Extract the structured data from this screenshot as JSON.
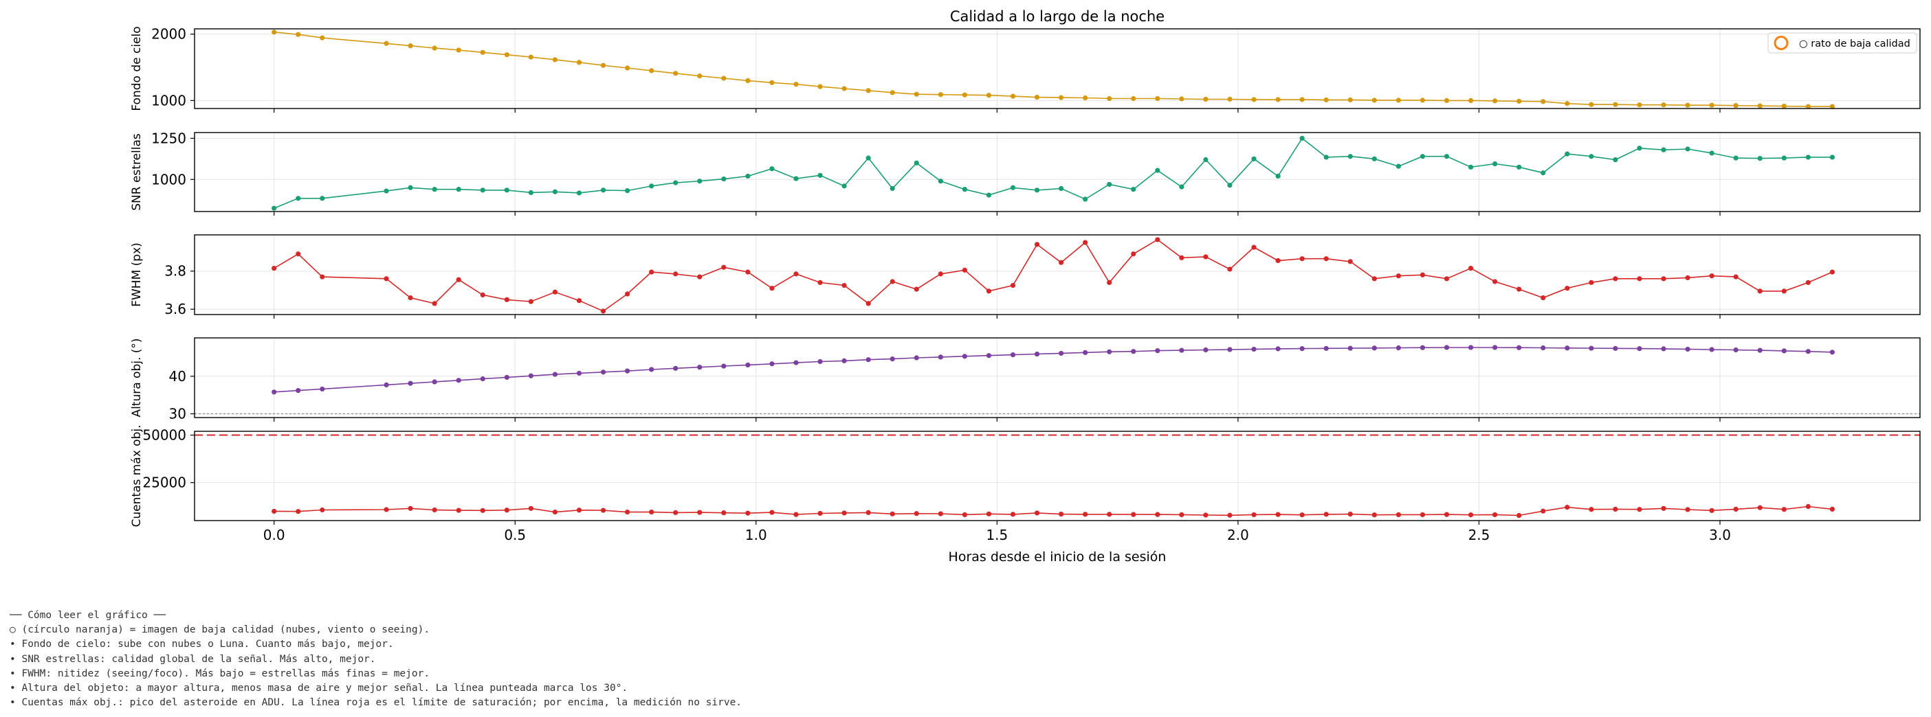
{
  "figure": {
    "title": "Calidad a lo largo de la noche",
    "xlabel": "Horas desde el inicio de la sesión",
    "legend_label": "○ rato de baja calidad",
    "legend_marker_color": "#ff7f0e"
  },
  "notes": [
    "── Cómo leer el gráfico ──",
    "○ (círculo naranja) = imagen de baja calidad (nubes, viento o seeing).",
    "• Fondo de cielo: sube con nubes o Luna. Cuanto más bajo, mejor.",
    "• SNR estrellas: calidad global de la señal. Más alto, mejor.",
    "• FWHM: nitidez (seeing/foco). Más bajo = estrellas más finas = mejor.",
    "• Altura del objeto: a mayor altura, menos masa de aire y mejor señal. La línea punteada marca los 30°.",
    "• Cuentas máx obj.: pico del asteroide en ADU. La línea roja es el límite de saturación; por encima, la medición no sirve."
  ],
  "chart_data": [
    {
      "type": "line",
      "panel": 1,
      "ylabel": "Fondo de cielo",
      "xlim": [
        -0.165,
        3.415
      ],
      "ylim": [
        880,
        2080
      ],
      "yticks": [
        1000,
        2000
      ],
      "xticks": [
        0.0,
        0.5,
        1.0,
        1.5,
        2.0,
        2.5,
        3.0
      ],
      "grid": true,
      "legend": "top-right",
      "color": "#d4990f",
      "x": [
        0.0,
        0.05,
        0.1,
        0.233,
        0.283,
        0.333,
        0.383,
        0.433,
        0.483,
        0.533,
        0.583,
        0.633,
        0.683,
        0.733,
        0.783,
        0.833,
        0.883,
        0.933,
        0.983,
        1.033,
        1.083,
        1.133,
        1.183,
        1.233,
        1.283,
        1.333,
        1.383,
        1.433,
        1.483,
        1.533,
        1.583,
        1.633,
        1.683,
        1.733,
        1.783,
        1.833,
        1.883,
        1.933,
        1.983,
        2.033,
        2.083,
        2.133,
        2.183,
        2.233,
        2.283,
        2.333,
        2.383,
        2.433,
        2.483,
        2.533,
        2.583,
        2.633,
        2.683,
        2.733,
        2.783,
        2.833,
        2.883,
        2.933,
        2.983,
        3.033,
        3.083,
        3.133,
        3.183,
        3.233
      ],
      "y": [
        2030,
        1995,
        1945,
        1860,
        1825,
        1790,
        1760,
        1725,
        1690,
        1655,
        1615,
        1575,
        1530,
        1490,
        1450,
        1410,
        1370,
        1335,
        1300,
        1270,
        1245,
        1210,
        1180,
        1150,
        1120,
        1095,
        1090,
        1085,
        1080,
        1065,
        1050,
        1045,
        1040,
        1030,
        1030,
        1030,
        1025,
        1020,
        1020,
        1015,
        1015,
        1015,
        1010,
        1010,
        1005,
        1005,
        1005,
        1000,
        1000,
        995,
        990,
        985,
        955,
        940,
        940,
        935,
        935,
        930,
        930,
        925,
        920,
        915,
        910,
        910
      ]
    },
    {
      "type": "line",
      "panel": 2,
      "ylabel": "SNR estrellas",
      "xlim": [
        -0.165,
        3.415
      ],
      "ylim": [
        805,
        1285
      ],
      "yticks": [
        1000,
        1250
      ],
      "xticks": [
        0.0,
        0.5,
        1.0,
        1.5,
        2.0,
        2.5,
        3.0
      ],
      "grid": true,
      "color": "#1a9e74",
      "x": [
        0.0,
        0.05,
        0.1,
        0.233,
        0.283,
        0.333,
        0.383,
        0.433,
        0.483,
        0.533,
        0.583,
        0.633,
        0.683,
        0.733,
        0.783,
        0.833,
        0.883,
        0.933,
        0.983,
        1.033,
        1.083,
        1.133,
        1.183,
        1.233,
        1.283,
        1.333,
        1.383,
        1.433,
        1.483,
        1.533,
        1.583,
        1.633,
        1.683,
        1.733,
        1.783,
        1.833,
        1.883,
        1.933,
        1.983,
        2.033,
        2.083,
        2.133,
        2.183,
        2.233,
        2.283,
        2.333,
        2.383,
        2.433,
        2.483,
        2.533,
        2.583,
        2.633,
        2.683,
        2.733,
        2.783,
        2.833,
        2.883,
        2.933,
        2.983,
        3.033,
        3.083,
        3.133,
        3.183,
        3.233
      ],
      "y": [
        825,
        885,
        885,
        930,
        950,
        940,
        940,
        935,
        935,
        920,
        925,
        918,
        935,
        932,
        960,
        980,
        990,
        1003,
        1020,
        1065,
        1005,
        1025,
        960,
        1130,
        945,
        1100,
        990,
        940,
        905,
        950,
        935,
        945,
        880,
        970,
        940,
        1055,
        955,
        1120,
        965,
        1125,
        1020,
        1250,
        1135,
        1140,
        1125,
        1080,
        1140,
        1140,
        1075,
        1095,
        1075,
        1040,
        1155,
        1140,
        1120,
        1190,
        1180,
        1185,
        1160,
        1130,
        1128,
        1130,
        1135,
        1135
      ]
    },
    {
      "type": "line",
      "panel": 3,
      "ylabel": "FWHM (px)",
      "xlim": [
        -0.165,
        3.415
      ],
      "ylim": [
        3.572,
        3.99
      ],
      "yticks": [
        3.6,
        3.8
      ],
      "xticks": [
        0.0,
        0.5,
        1.0,
        1.5,
        2.0,
        2.5,
        3.0
      ],
      "grid": true,
      "color": "#d62728",
      "x": [
        0.0,
        0.05,
        0.1,
        0.233,
        0.283,
        0.333,
        0.383,
        0.433,
        0.483,
        0.533,
        0.583,
        0.633,
        0.683,
        0.733,
        0.783,
        0.833,
        0.883,
        0.933,
        0.983,
        1.033,
        1.083,
        1.133,
        1.183,
        1.233,
        1.283,
        1.333,
        1.383,
        1.433,
        1.483,
        1.533,
        1.583,
        1.633,
        1.683,
        1.733,
        1.783,
        1.833,
        1.883,
        1.933,
        1.983,
        2.033,
        2.083,
        2.133,
        2.183,
        2.233,
        2.283,
        2.333,
        2.383,
        2.433,
        2.483,
        2.533,
        2.583,
        2.633,
        2.683,
        2.733,
        2.783,
        2.833,
        2.883,
        2.933,
        2.983,
        3.033,
        3.083,
        3.133,
        3.183,
        3.233
      ],
      "y": [
        3.815,
        3.89,
        3.77,
        3.76,
        3.66,
        3.63,
        3.755,
        3.675,
        3.65,
        3.64,
        3.69,
        3.645,
        3.59,
        3.68,
        3.795,
        3.785,
        3.77,
        3.82,
        3.795,
        3.71,
        3.785,
        3.74,
        3.725,
        3.63,
        3.745,
        3.705,
        3.785,
        3.805,
        3.695,
        3.725,
        3.94,
        3.845,
        3.95,
        3.74,
        3.89,
        3.965,
        3.87,
        3.875,
        3.81,
        3.925,
        3.855,
        3.865,
        3.865,
        3.85,
        3.76,
        3.775,
        3.78,
        3.76,
        3.815,
        3.745,
        3.705,
        3.66,
        3.71,
        3.74,
        3.76,
        3.76,
        3.76,
        3.765,
        3.775,
        3.77,
        3.695,
        3.695,
        3.74,
        3.795
      ]
    },
    {
      "type": "line",
      "panel": 4,
      "ylabel": "Altura obj. (°)",
      "xlim": [
        -0.165,
        3.415
      ],
      "ylim": [
        29.0,
        50.2
      ],
      "yticks": [
        30,
        40
      ],
      "xticks": [
        0.0,
        0.5,
        1.0,
        1.5,
        2.0,
        2.5,
        3.0
      ],
      "grid": true,
      "color": "#7b3f9e",
      "reference_line": 30,
      "x": [
        0.0,
        0.05,
        0.1,
        0.233,
        0.283,
        0.333,
        0.383,
        0.433,
        0.483,
        0.533,
        0.583,
        0.633,
        0.683,
        0.733,
        0.783,
        0.833,
        0.883,
        0.933,
        0.983,
        1.033,
        1.083,
        1.133,
        1.183,
        1.233,
        1.283,
        1.333,
        1.383,
        1.433,
        1.483,
        1.533,
        1.583,
        1.633,
        1.683,
        1.733,
        1.783,
        1.833,
        1.883,
        1.933,
        1.983,
        2.033,
        2.083,
        2.133,
        2.183,
        2.233,
        2.283,
        2.333,
        2.383,
        2.433,
        2.483,
        2.533,
        2.583,
        2.633,
        2.683,
        2.733,
        2.783,
        2.833,
        2.883,
        2.933,
        2.983,
        3.033,
        3.083,
        3.133,
        3.183,
        3.233
      ],
      "y": [
        35.8,
        36.2,
        36.6,
        37.7,
        38.1,
        38.5,
        38.9,
        39.3,
        39.7,
        40.1,
        40.5,
        40.8,
        41.1,
        41.4,
        41.8,
        42.1,
        42.4,
        42.7,
        43.0,
        43.3,
        43.6,
        43.9,
        44.1,
        44.4,
        44.6,
        44.9,
        45.1,
        45.3,
        45.5,
        45.7,
        45.9,
        46.1,
        46.3,
        46.5,
        46.6,
        46.8,
        46.9,
        47.0,
        47.1,
        47.2,
        47.3,
        47.35,
        47.4,
        47.45,
        47.5,
        47.55,
        47.6,
        47.65,
        47.65,
        47.65,
        47.6,
        47.55,
        47.5,
        47.45,
        47.4,
        47.35,
        47.3,
        47.2,
        47.1,
        47.0,
        46.9,
        46.75,
        46.6,
        46.4
      ]
    },
    {
      "type": "line",
      "panel": 5,
      "ylabel": "Cuentas máx obj.",
      "xlim": [
        -0.165,
        3.415
      ],
      "ylim": [
        5000,
        52000
      ],
      "yticks": [
        25000,
        50000
      ],
      "xticks": [
        0.0,
        0.5,
        1.0,
        1.5,
        2.0,
        2.5,
        3.0
      ],
      "grid": true,
      "color": "#d62728",
      "reference_line": 50000,
      "x": [
        0.0,
        0.05,
        0.1,
        0.233,
        0.283,
        0.333,
        0.383,
        0.433,
        0.483,
        0.533,
        0.583,
        0.633,
        0.683,
        0.733,
        0.783,
        0.833,
        0.883,
        0.933,
        0.983,
        1.033,
        1.083,
        1.133,
        1.183,
        1.233,
        1.283,
        1.333,
        1.383,
        1.433,
        1.483,
        1.533,
        1.583,
        1.633,
        1.683,
        1.733,
        1.783,
        1.833,
        1.883,
        1.933,
        1.983,
        2.033,
        2.083,
        2.133,
        2.183,
        2.233,
        2.283,
        2.333,
        2.383,
        2.433,
        2.483,
        2.533,
        2.583,
        2.633,
        2.683,
        2.733,
        2.783,
        2.833,
        2.883,
        2.933,
        2.983,
        3.033,
        3.083,
        3.133,
        3.183,
        3.233
      ],
      "y": [
        9900,
        9800,
        10600,
        10800,
        11400,
        10600,
        10400,
        10300,
        10500,
        11400,
        9500,
        10500,
        10400,
        9500,
        9500,
        9200,
        9300,
        9100,
        8900,
        9300,
        8200,
        8800,
        9000,
        9200,
        8500,
        8700,
        8600,
        8100,
        8500,
        8300,
        9000,
        8400,
        8300,
        8300,
        8200,
        8200,
        8100,
        7900,
        7800,
        8100,
        8200,
        8000,
        8300,
        8400,
        8000,
        8100,
        8100,
        8200,
        8000,
        8100,
        7700,
        10000,
        12000,
        10900,
        11000,
        10900,
        11400,
        10800,
        10300,
        11000,
        11800,
        10900,
        12400,
        11000
      ]
    }
  ]
}
